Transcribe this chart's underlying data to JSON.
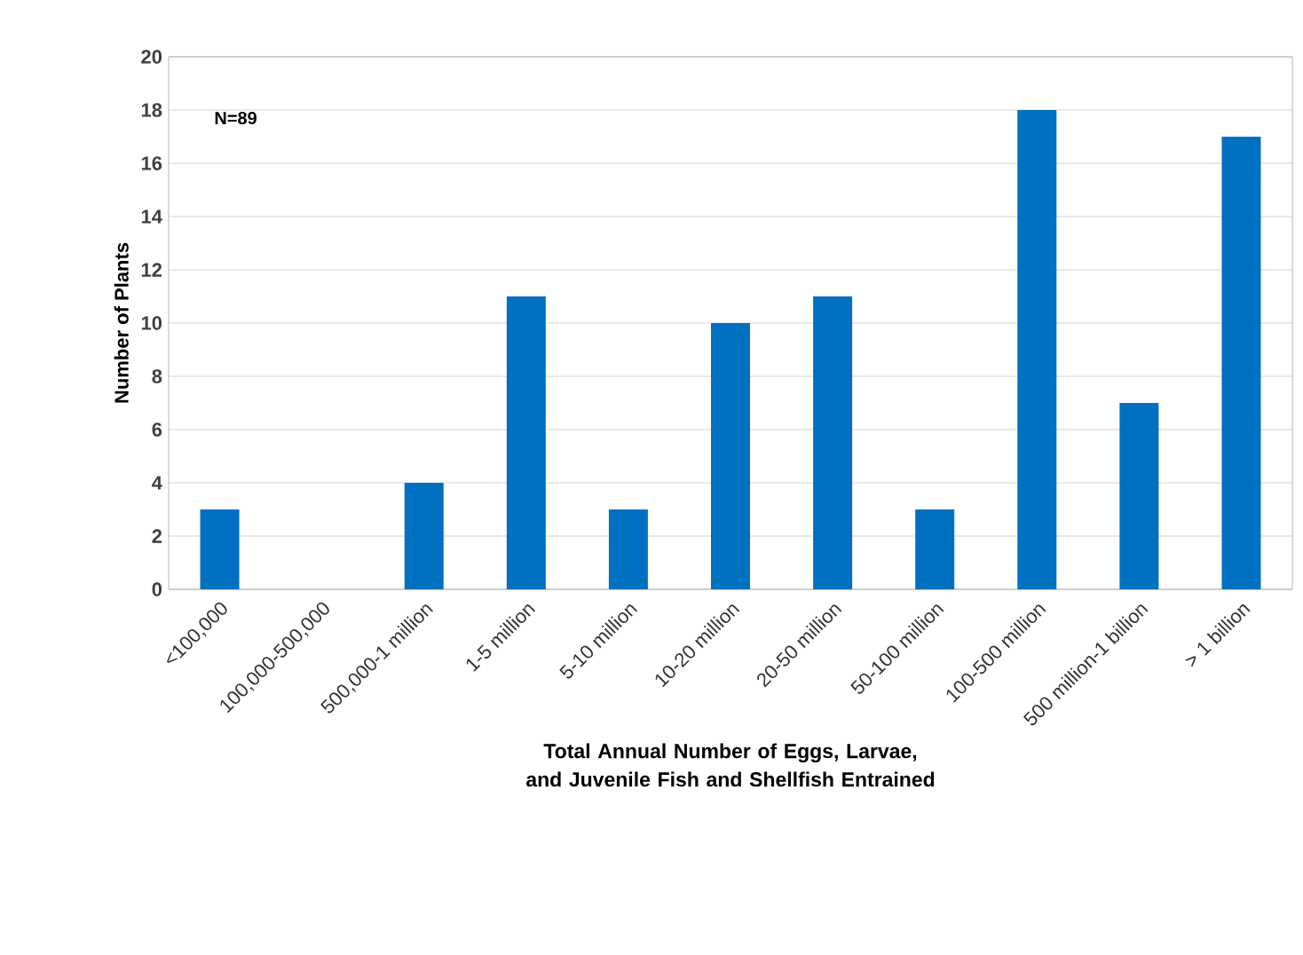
{
  "chart_data": {
    "type": "bar",
    "xlabel": "Total Annual Number of Eggs, Larvae, and Juvenile Fish and Shellfish Entrained",
    "ylabel": "Number of Plants",
    "categories": [
      "<100,000",
      "100,000-500,000",
      "500,000-1 million",
      "1-5 million",
      "5-10 million",
      "10-20 million",
      "20-50 million",
      "50-100 million",
      "100-500 million",
      "500 million-1 billion",
      "> 1 billion"
    ],
    "values": [
      3,
      0,
      4,
      11,
      3,
      10,
      11,
      3,
      18,
      7,
      17
    ],
    "color": "#0070c0",
    "ylim": [
      0,
      20
    ],
    "yticks": [
      0,
      2,
      4,
      6,
      8,
      10,
      12,
      14,
      16,
      18,
      20
    ],
    "grid": "y",
    "annotations": [
      "N=89"
    ]
  }
}
